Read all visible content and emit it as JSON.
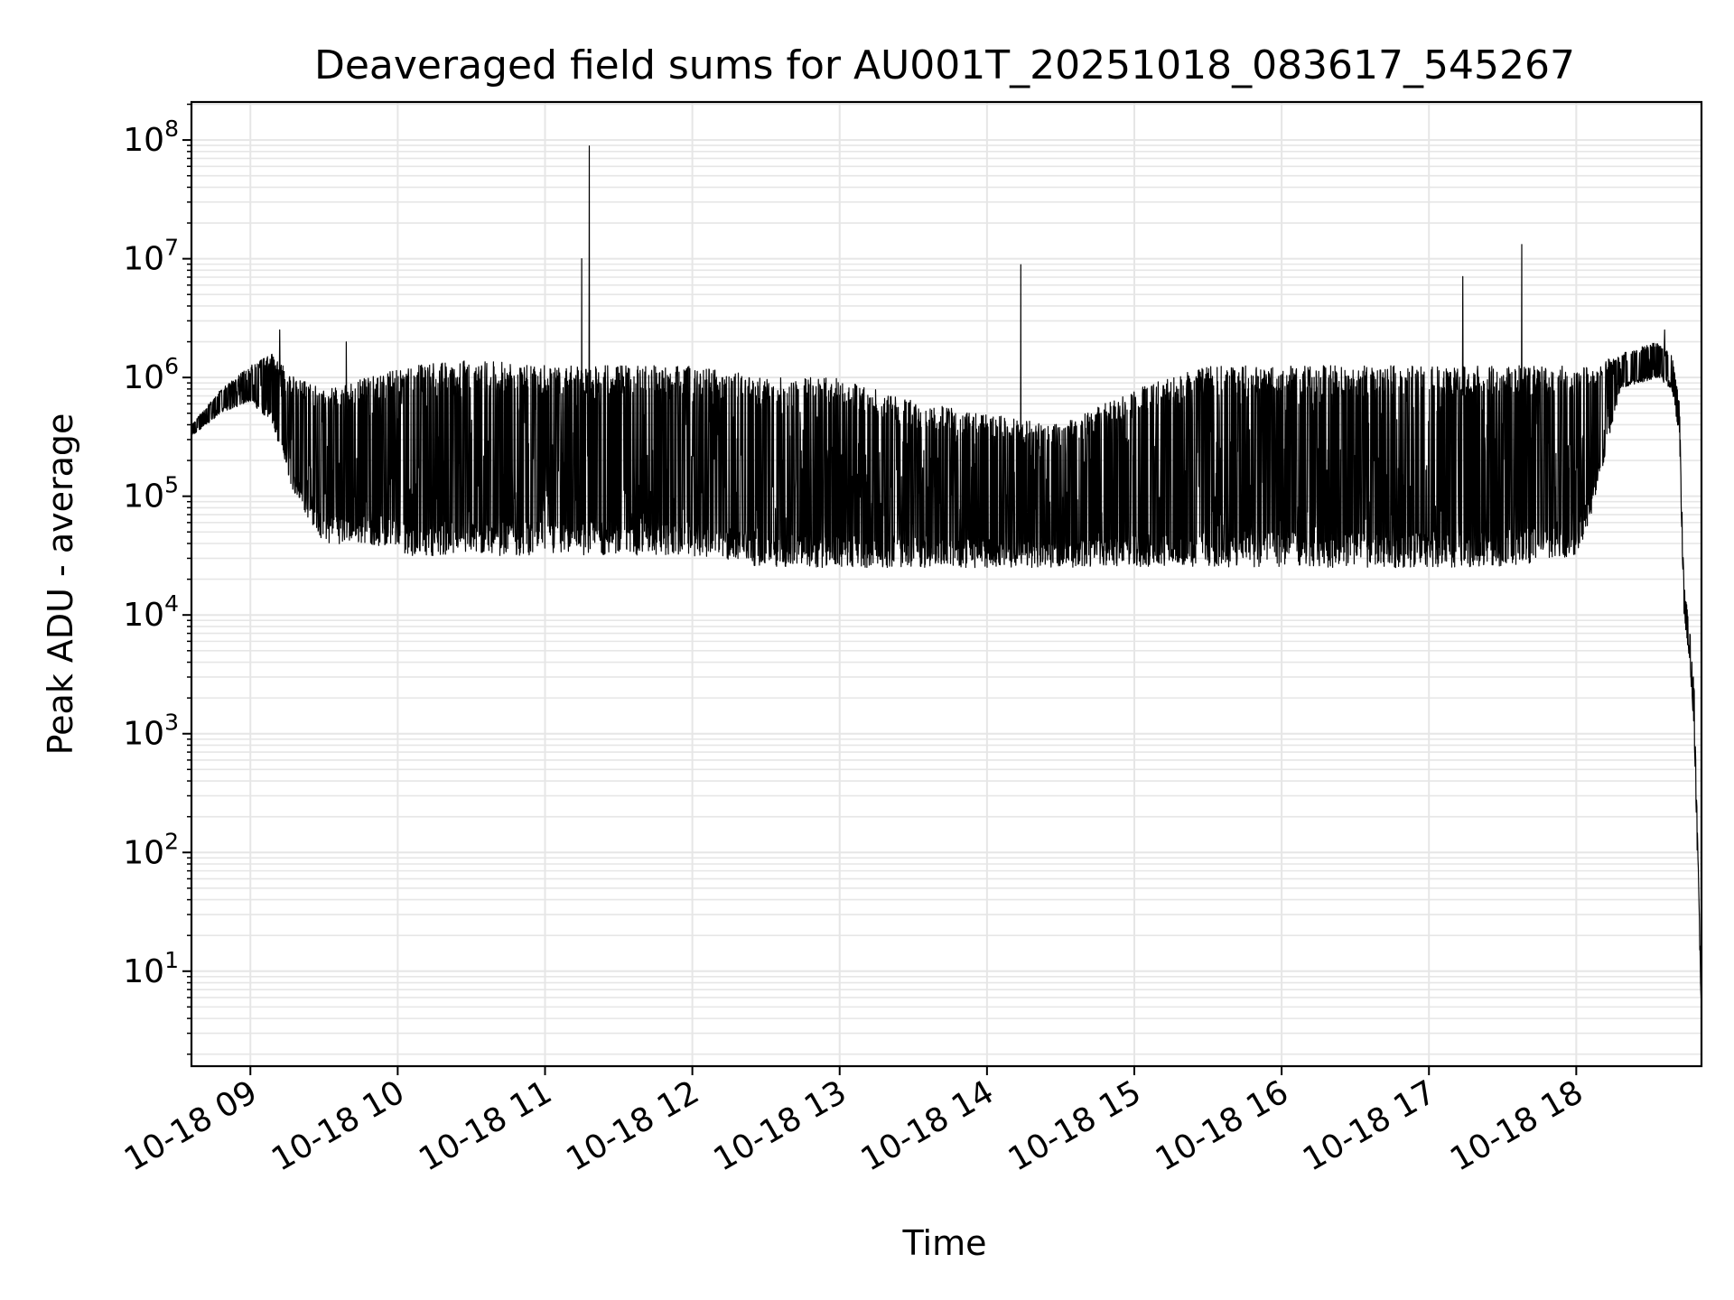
{
  "chart_data": {
    "type": "line",
    "title": "Deaveraged field sums for AU001T_20251018_083617_545267",
    "xlabel": "Time",
    "ylabel": "Peak ADU - average",
    "yscale": "log",
    "grid": true,
    "line_color": "#000000",
    "grid_color": "#e6e6e6",
    "xlim": [
      8.6,
      18.85
    ],
    "ylim_log10": [
      0.2,
      8.32
    ],
    "x_ticks": [
      {
        "value": 9,
        "label": "10-18 09"
      },
      {
        "value": 10,
        "label": "10-18 10"
      },
      {
        "value": 11,
        "label": "10-18 11"
      },
      {
        "value": 12,
        "label": "10-18 12"
      },
      {
        "value": 13,
        "label": "10-18 13"
      },
      {
        "value": 14,
        "label": "10-18 14"
      },
      {
        "value": 15,
        "label": "10-18 15"
      },
      {
        "value": 16,
        "label": "10-18 16"
      },
      {
        "value": 17,
        "label": "10-18 17"
      },
      {
        "value": 18,
        "label": "10-18 18"
      }
    ],
    "y_ticks": [
      {
        "exp": 1,
        "base": "10",
        "sup": "1"
      },
      {
        "exp": 2,
        "base": "10",
        "sup": "2"
      },
      {
        "exp": 3,
        "base": "10",
        "sup": "3"
      },
      {
        "exp": 4,
        "base": "10",
        "sup": "4"
      },
      {
        "exp": 5,
        "base": "10",
        "sup": "5"
      },
      {
        "exp": 6,
        "base": "10",
        "sup": "6"
      },
      {
        "exp": 7,
        "base": "10",
        "sup": "7"
      },
      {
        "exp": 8,
        "base": "10",
        "sup": "8"
      }
    ],
    "series": [
      {
        "name": "Peak ADU - average",
        "envelope": [
          {
            "x": 8.6,
            "low_log": 5.5,
            "high_log": 5.6
          },
          {
            "x": 8.8,
            "low_log": 5.7,
            "high_log": 5.9
          },
          {
            "x": 9.0,
            "low_log": 5.8,
            "high_log": 6.1
          },
          {
            "x": 9.15,
            "low_log": 5.6,
            "high_log": 6.2
          },
          {
            "x": 9.3,
            "low_log": 5.0,
            "high_log": 6.0
          },
          {
            "x": 9.5,
            "low_log": 4.6,
            "high_log": 5.9
          },
          {
            "x": 9.8,
            "low_log": 4.6,
            "high_log": 6.0
          },
          {
            "x": 10.1,
            "low_log": 4.5,
            "high_log": 6.1
          },
          {
            "x": 10.5,
            "low_log": 4.5,
            "high_log": 6.15
          },
          {
            "x": 11.0,
            "low_log": 4.5,
            "high_log": 6.1
          },
          {
            "x": 11.5,
            "low_log": 4.5,
            "high_log": 6.1
          },
          {
            "x": 12.0,
            "low_log": 4.5,
            "high_log": 6.1
          },
          {
            "x": 12.5,
            "low_log": 4.4,
            "high_log": 6.0
          },
          {
            "x": 13.0,
            "low_log": 4.4,
            "high_log": 6.0
          },
          {
            "x": 13.5,
            "low_log": 4.4,
            "high_log": 5.8
          },
          {
            "x": 14.0,
            "low_log": 4.4,
            "high_log": 5.7
          },
          {
            "x": 14.5,
            "low_log": 4.4,
            "high_log": 5.6
          },
          {
            "x": 15.0,
            "low_log": 4.4,
            "high_log": 5.9
          },
          {
            "x": 15.5,
            "low_log": 4.4,
            "high_log": 6.1
          },
          {
            "x": 16.0,
            "low_log": 4.4,
            "high_log": 6.1
          },
          {
            "x": 16.5,
            "low_log": 4.4,
            "high_log": 6.1
          },
          {
            "x": 17.0,
            "low_log": 4.4,
            "high_log": 6.1
          },
          {
            "x": 17.5,
            "low_log": 4.4,
            "high_log": 6.1
          },
          {
            "x": 18.0,
            "low_log": 4.5,
            "high_log": 6.1
          },
          {
            "x": 18.1,
            "low_log": 4.8,
            "high_log": 6.1
          },
          {
            "x": 18.3,
            "low_log": 5.9,
            "high_log": 6.2
          },
          {
            "x": 18.55,
            "low_log": 6.0,
            "high_log": 6.3
          },
          {
            "x": 18.65,
            "low_log": 5.9,
            "high_log": 6.2
          },
          {
            "x": 18.7,
            "low_log": 5.5,
            "high_log": 5.8
          },
          {
            "x": 18.73,
            "low_log": 4.0,
            "high_log": 4.3
          },
          {
            "x": 18.77,
            "low_log": 3.6,
            "high_log": 3.9
          },
          {
            "x": 18.8,
            "low_log": 3.0,
            "high_log": 3.4
          },
          {
            "x": 18.85,
            "low_log": 0.6,
            "high_log": 0.7
          }
        ],
        "spikes": [
          {
            "x": 9.2,
            "value_log": 6.4
          },
          {
            "x": 9.65,
            "value_log": 6.3
          },
          {
            "x": 11.25,
            "value_log": 7.0
          },
          {
            "x": 11.3,
            "value_log": 7.95
          },
          {
            "x": 14.23,
            "value_log": 6.95
          },
          {
            "x": 17.23,
            "value_log": 6.85
          },
          {
            "x": 17.63,
            "value_log": 7.12
          },
          {
            "x": 18.6,
            "value_log": 6.4
          }
        ]
      }
    ]
  }
}
